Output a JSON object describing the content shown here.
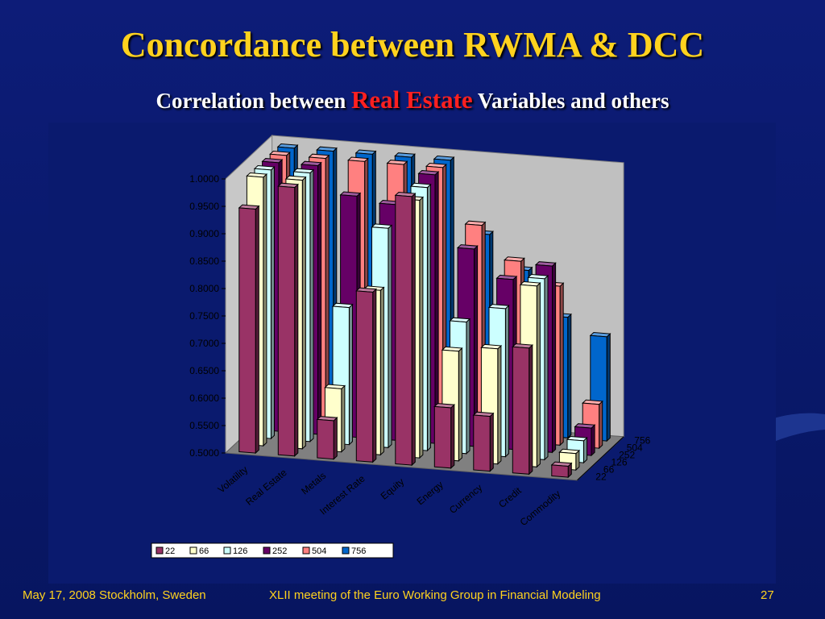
{
  "slide": {
    "title": "Concordance between RWMA & DCC",
    "subtitle_prefix": "Correlation between",
    "subtitle_highlight": "Real Estate",
    "subtitle_suffix": "Variables and others"
  },
  "footer": {
    "left": "May 17, 2008 Stockholm, Sweden",
    "center": "XLII meeting of the Euro Working Group in Financial Modeling",
    "page_number": "27"
  },
  "colors": {
    "background": "#0a1a6e",
    "title": "#ffd21e",
    "highlight": "#ff2020",
    "series": [
      "#993366",
      "#ffffcc",
      "#ccffff",
      "#660066",
      "#ff8080",
      "#0066cc"
    ]
  },
  "chart_data": {
    "type": "bar",
    "subtype": "3d-clustered-column",
    "categories": [
      "Volatility",
      "Real Estate",
      "Metals",
      "Interest Rate",
      "Equity",
      "Energy",
      "Currency",
      "Credit",
      "Commodity"
    ],
    "y_tick_labels": [
      "0.5000",
      "0.5500",
      "0.6000",
      "0.6500",
      "0.7000",
      "0.7500",
      "0.8000",
      "0.8500",
      "0.9000",
      "0.9500",
      "1.0000"
    ],
    "ylim": [
      0.5,
      1.0
    ],
    "depth_labels": [
      "22",
      "66",
      "126",
      "252",
      "504",
      "756"
    ],
    "series": [
      {
        "name": "22",
        "values": [
          0.945,
          0.99,
          0.57,
          0.81,
          0.99,
          0.61,
          0.6,
          0.73,
          0.52
        ]
      },
      {
        "name": "66",
        "values": [
          0.99,
          0.99,
          0.615,
          0.8,
          0.97,
          0.7,
          0.71,
          0.83,
          0.53
        ]
      },
      {
        "name": "126",
        "values": [
          0.99,
          0.99,
          0.75,
          0.9,
          0.98,
          0.74,
          0.77,
          0.83,
          0.54
        ]
      },
      {
        "name": "252",
        "values": [
          0.99,
          0.99,
          0.94,
          0.93,
          0.99,
          0.86,
          0.81,
          0.84,
          0.55
        ]
      },
      {
        "name": "504",
        "values": [
          0.99,
          0.99,
          0.99,
          0.99,
          0.99,
          0.89,
          0.83,
          0.79,
          0.58
        ]
      },
      {
        "name": "756",
        "values": [
          0.99,
          0.99,
          0.99,
          0.99,
          0.99,
          0.86,
          0.8,
          0.72,
          0.69
        ]
      }
    ],
    "legend_position": "bottom",
    "grid": false
  }
}
